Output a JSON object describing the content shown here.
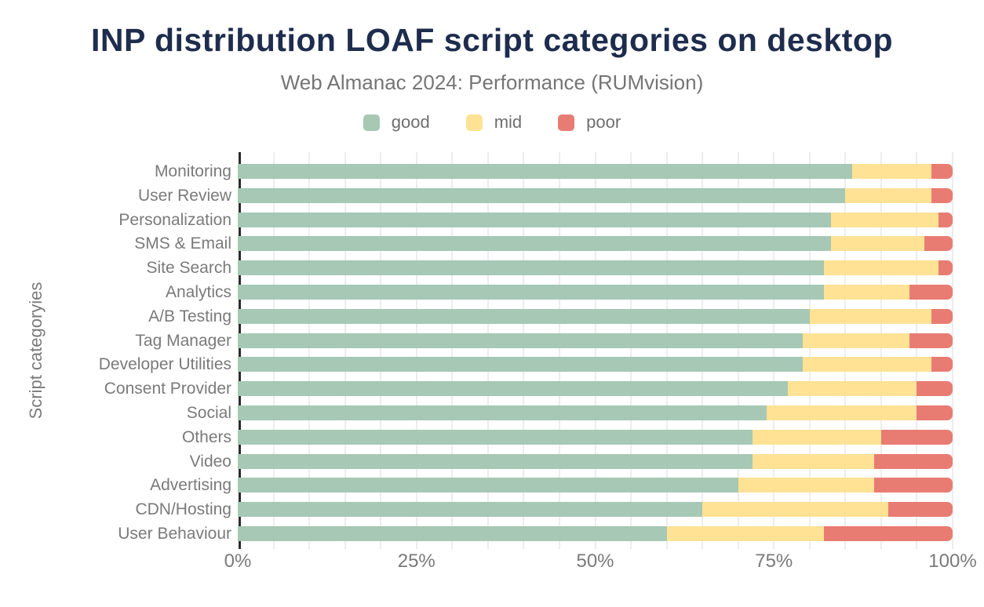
{
  "figure": {
    "title": "INP distribution LOAF script categories on desktop",
    "subtitle": "Web Almanac 2024: Performance (RUMvision)"
  },
  "chart_data": {
    "type": "bar",
    "orientation": "horizontal",
    "stacked": true,
    "title": "INP distribution LOAF script categories on desktop",
    "subtitle": "Web Almanac 2024: Performance (RUMvision)",
    "ylabel": "Script categoryies",
    "xlabel": "",
    "xlim": [
      0,
      100
    ],
    "x_tick_labels": [
      "0%",
      "25%",
      "50%",
      "75%",
      "100%"
    ],
    "x_tick_positions": [
      0,
      25,
      50,
      75,
      100
    ],
    "grid": true,
    "grid_step_percent": 5,
    "legend_position": "top",
    "unit": "%",
    "categories": [
      "Monitoring",
      "User Review",
      "Personalization",
      "SMS & Email",
      "Site Search",
      "Analytics",
      "A/B Testing",
      "Tag Manager",
      "Developer Utilities",
      "Consent Provider",
      "Social",
      "Others",
      "Video",
      "Advertising",
      "CDN/Hosting",
      "User Behaviour"
    ],
    "series": [
      {
        "name": "good",
        "color": "#a6c8b5",
        "values": [
          86,
          85,
          83,
          83,
          82,
          82,
          80,
          79,
          79,
          77,
          74,
          72,
          72,
          70,
          65,
          60
        ]
      },
      {
        "name": "mid",
        "color": "#ffe294",
        "values": [
          11,
          12,
          15,
          13,
          16,
          12,
          17,
          15,
          18,
          18,
          21,
          18,
          17,
          19,
          26,
          22
        ]
      },
      {
        "name": "poor",
        "color": "#e87c73",
        "values": [
          3,
          3,
          2,
          4,
          2,
          6,
          3,
          6,
          3,
          5,
          5,
          10,
          11,
          11,
          9,
          18
        ]
      }
    ],
    "colors": {
      "good": "#a6c8b5",
      "mid": "#ffe294",
      "poor": "#e87c73",
      "title": "#1e2c4d",
      "subtitle": "#757575",
      "axis_text": "#7a7a7a",
      "axis_line": "#2b2b2b",
      "gridline": "#ededed",
      "background": "#ffffff"
    }
  }
}
